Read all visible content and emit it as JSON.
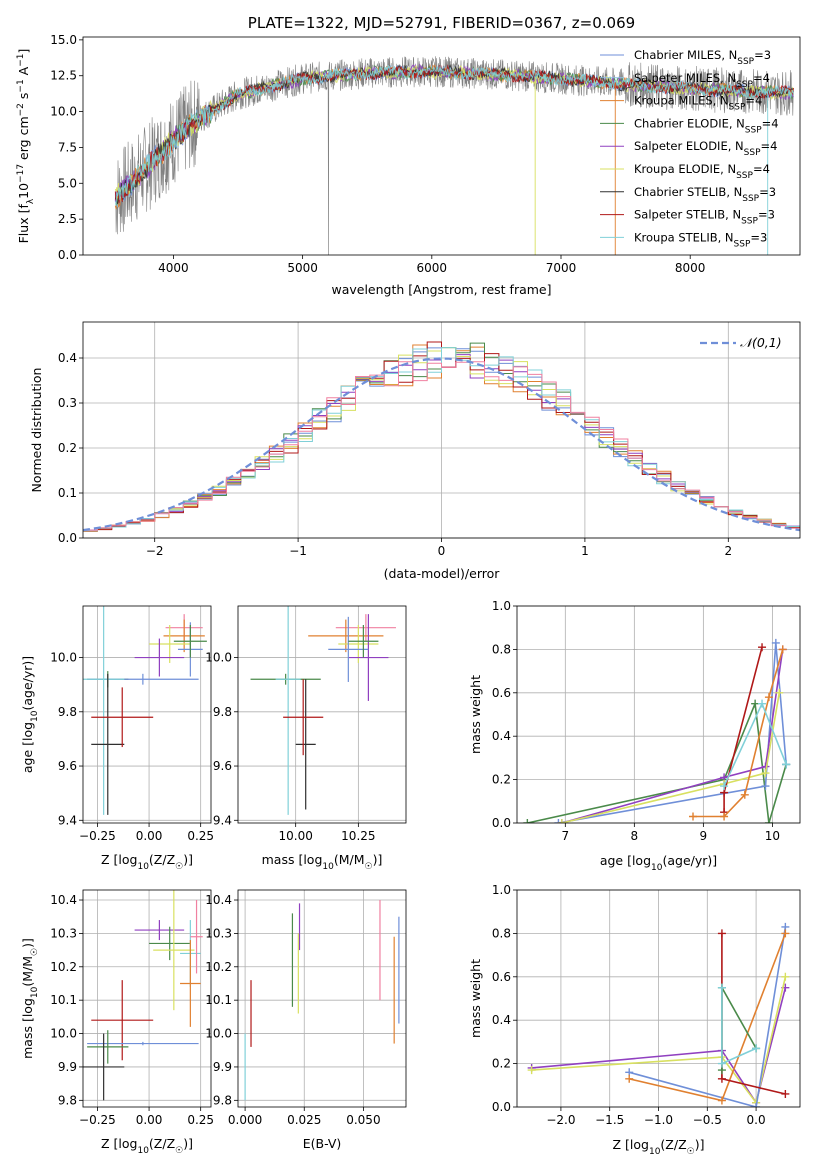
{
  "chart_data": [
    {
      "type": "line",
      "title": "PLATE=1322, MJD=52791, FIBERID=0367, z=0.069",
      "xlabel": "wavelength [Angstrom, rest frame]",
      "ylabel": "Flux [f_λ10^-17 erg cm^-2 s^-1 A^-1]",
      "xlim": [
        3300,
        8850
      ],
      "ylim": [
        0,
        15.2
      ],
      "xticks": [
        "4000",
        "5000",
        "6000",
        "7000",
        "8000"
      ],
      "yticks": [
        "0.0",
        "2.5",
        "5.0",
        "7.5",
        "10.0",
        "12.5",
        "15.0"
      ],
      "grid": false,
      "legend_position": "top-right",
      "data_series": {
        "name": "data",
        "color": "#808080"
      },
      "continuum": {
        "x": [
          3550,
          3700,
          3850,
          4000,
          4200,
          4500,
          5000,
          5500,
          6000,
          6500,
          7000,
          7500,
          8000,
          8500,
          8800
        ],
        "y": [
          4.0,
          5.2,
          6.6,
          8.0,
          9.5,
          11.2,
          12.3,
          12.7,
          12.8,
          12.6,
          12.3,
          11.9,
          11.6,
          11.4,
          11.3
        ]
      },
      "series": [
        {
          "name": "Chabrier MILES, N_SSP=3",
          "color": "#6f8fd8"
        },
        {
          "name": "Salpeter MILES, N_SSP=4",
          "color": "#8cc0e0"
        },
        {
          "name": "Kroupa MILES, N_SSP=4",
          "color": "#e08030"
        },
        {
          "name": "Chabrier ELODIE, N_SSP=4",
          "color": "#4a8a4a"
        },
        {
          "name": "Salpeter ELODIE, N_SSP=4",
          "color": "#9040c0"
        },
        {
          "name": "Kroupa ELODIE, N_SSP=4",
          "color": "#d8e060"
        },
        {
          "name": "Chabrier STELIB, N_SSP=3",
          "color": "#303030"
        },
        {
          "name": "Salpeter STELIB, N_SSP=3",
          "color": "#b01818"
        },
        {
          "name": "Kroupa STELIB, N_SSP=3",
          "color": "#80d0d8"
        }
      ]
    },
    {
      "type": "histogram",
      "xlabel": "(data-model)/error",
      "ylabel": "Normed distribution",
      "xlim": [
        -2.5,
        2.5
      ],
      "ylim": [
        0,
        0.48
      ],
      "xticks": [
        "−2",
        "−1",
        "0",
        "1",
        "2"
      ],
      "yticks": [
        "0.0",
        "0.1",
        "0.2",
        "0.3",
        "0.4"
      ],
      "grid": true,
      "legend": "𝒩(0,1)",
      "legend_position": "top-right",
      "bin_width": 0.1,
      "series_colors": [
        "#6f8fd8",
        "#e08030",
        "#4a8a4a",
        "#9040c0",
        "#d8e060",
        "#b01818",
        "#80d0d8",
        "#f080a0"
      ]
    },
    {
      "type": "scatter",
      "xlabel": "Z [log10(Z/Z☉)]",
      "ylabel": "age  [log10(age/yr)]",
      "xlim": [
        -0.32,
        0.3
      ],
      "ylim": [
        9.39,
        10.19
      ],
      "xticks": [
        "−0.25",
        "0.00",
        "0.25"
      ],
      "yticks": [
        "9.4",
        "9.6",
        "9.8",
        "10.0"
      ],
      "grid": true,
      "points": [
        {
          "x": -0.2,
          "y": 9.92,
          "ex": 0.1,
          "ey": 0.03,
          "color": "#4a8a4a"
        },
        {
          "x": -0.03,
          "y": 9.92,
          "ex": 0.27,
          "ey": 0.02,
          "color": "#6f8fd8"
        },
        {
          "x": -0.22,
          "y": 9.92,
          "ex": 0.1,
          "ey": 0.5,
          "color": "#80d0d8"
        },
        {
          "x": -0.2,
          "y": 9.68,
          "ex": 0.08,
          "ey": 0.26,
          "color": "#303030"
        },
        {
          "x": -0.13,
          "y": 9.78,
          "ex": 0.15,
          "ey": 0.11,
          "color": "#b01818"
        },
        {
          "x": 0.17,
          "y": 10.11,
          "ex": 0.09,
          "ey": 0.05,
          "color": "#f080a0"
        },
        {
          "x": 0.17,
          "y": 10.08,
          "ex": 0.1,
          "ey": 0.06,
          "color": "#e08030"
        },
        {
          "x": 0.1,
          "y": 10.05,
          "ex": 0.1,
          "ey": 0.07,
          "color": "#d8e060"
        },
        {
          "x": 0.05,
          "y": 10.0,
          "ex": 0.12,
          "ey": 0.07,
          "color": "#9040c0"
        },
        {
          "x": 0.2,
          "y": 10.03,
          "ex": 0.06,
          "ey": 0.1,
          "color": "#6f8fd8"
        },
        {
          "x": 0.2,
          "y": 10.06,
          "ex": 0.08,
          "ey": 0.06,
          "color": "#4a8a4a"
        }
      ]
    },
    {
      "type": "scatter",
      "xlabel": "mass [log10(M/M☉)]",
      "ylabel": "",
      "xlim": [
        9.77,
        10.44
      ],
      "ylim": [
        9.39,
        10.19
      ],
      "xticks": [
        "10.00",
        "10.25"
      ],
      "yticks": [
        "9.4",
        "9.6",
        "9.8",
        "10.0"
      ],
      "grid": true,
      "points": [
        {
          "x": 9.96,
          "y": 9.92,
          "ex": 0.14,
          "ey": 0.02,
          "color": "#4a8a4a"
        },
        {
          "x": 9.97,
          "y": 9.92,
          "ex": 0.05,
          "ey": 0.5,
          "color": "#80d0d8"
        },
        {
          "x": 10.04,
          "y": 9.68,
          "ex": 0.04,
          "ey": 0.24,
          "color": "#303030"
        },
        {
          "x": 10.03,
          "y": 9.78,
          "ex": 0.08,
          "ey": 0.14,
          "color": "#b01818"
        },
        {
          "x": 10.28,
          "y": 10.11,
          "ex": 0.12,
          "ey": 0.05,
          "color": "#f080a0"
        },
        {
          "x": 10.2,
          "y": 10.08,
          "ex": 0.15,
          "ey": 0.06,
          "color": "#e08030"
        },
        {
          "x": 10.25,
          "y": 10.05,
          "ex": 0.08,
          "ey": 0.07,
          "color": "#d8e060"
        },
        {
          "x": 10.29,
          "y": 10.0,
          "ex": 0.08,
          "ey": 0.16,
          "color": "#9040c0"
        },
        {
          "x": 10.21,
          "y": 10.03,
          "ex": 0.08,
          "ey": 0.12,
          "color": "#6f8fd8"
        },
        {
          "x": 10.27,
          "y": 10.06,
          "ex": 0.06,
          "ey": 0.06,
          "color": "#4a8a4a"
        }
      ]
    },
    {
      "type": "line",
      "xlabel": "age  [log10(age/yr)]",
      "ylabel": "mass weight",
      "xlim": [
        6.3,
        10.4
      ],
      "ylim": [
        0,
        1.0
      ],
      "xticks": [
        "7",
        "8",
        "9",
        "10"
      ],
      "yticks": [
        "0.0",
        "0.2",
        "0.4",
        "0.6",
        "0.8",
        "1.0"
      ],
      "grid": true,
      "series": [
        {
          "color": "#4a8a4a",
          "x": [
            6.45,
            9.3,
            9.75,
            9.95,
            10.2
          ],
          "y": [
            0.0,
            0.2,
            0.55,
            0.0,
            0.27
          ]
        },
        {
          "color": "#6f8fd8",
          "x": [
            6.9,
            9.9,
            10.05,
            10.2
          ],
          "y": [
            0.0,
            0.17,
            0.83,
            0.27
          ]
        },
        {
          "color": "#9040c0",
          "x": [
            6.95,
            9.3,
            9.9,
            10.15
          ],
          "y": [
            0.0,
            0.21,
            0.26,
            0.8
          ]
        },
        {
          "color": "#d8e060",
          "x": [
            6.95,
            9.3,
            9.9,
            10.1
          ],
          "y": [
            0.0,
            0.18,
            0.23,
            0.6
          ]
        },
        {
          "color": "#b01818",
          "x": [
            9.3,
            9.3,
            9.85
          ],
          "y": [
            0.05,
            0.14,
            0.81
          ]
        },
        {
          "color": "#e08030",
          "x": [
            8.85,
            9.3,
            9.6,
            9.95,
            10.15
          ],
          "y": [
            0.03,
            0.03,
            0.13,
            0.58,
            0.8
          ]
        },
        {
          "color": "#80d0d8",
          "x": [
            9.3,
            9.85,
            10.2
          ],
          "y": [
            0.17,
            0.55,
            0.27
          ]
        }
      ]
    },
    {
      "type": "scatter",
      "xlabel": "Z [log10(Z/Z☉)]",
      "ylabel": "mass [log10(M/M☉)]",
      "xlim": [
        -0.32,
        0.3
      ],
      "ylim": [
        9.78,
        10.43
      ],
      "xticks": [
        "−0.25",
        "0.00",
        "0.25"
      ],
      "yticks": [
        "9.8",
        "9.9",
        "10.0",
        "10.1",
        "10.2",
        "10.3",
        "10.4"
      ],
      "grid": true,
      "points": [
        {
          "x": -0.13,
          "y": 10.04,
          "ex": 0.15,
          "ey": 0.12,
          "color": "#b01818"
        },
        {
          "x": -0.03,
          "y": 9.97,
          "ex": 0.27,
          "ey": 0.005,
          "color": "#6f8fd8"
        },
        {
          "x": -0.2,
          "y": 9.96,
          "ex": 0.1,
          "ey": 0.05,
          "color": "#4a8a4a"
        },
        {
          "x": -0.22,
          "y": 9.9,
          "ex": 0.1,
          "ey": 0.1,
          "color": "#303030"
        },
        {
          "x": 0.05,
          "y": 10.31,
          "ex": 0.12,
          "ey": 0.03,
          "color": "#9040c0"
        },
        {
          "x": 0.1,
          "y": 10.27,
          "ex": 0.1,
          "ey": 0.05,
          "color": "#4a8a4a"
        },
        {
          "x": 0.12,
          "y": 10.25,
          "ex": 0.1,
          "ey": 0.18,
          "color": "#d8e060"
        },
        {
          "x": 0.2,
          "y": 10.24,
          "ex": 0.05,
          "ey": 0.1,
          "color": "#80d0d8"
        },
        {
          "x": 0.2,
          "y": 10.15,
          "ex": 0.05,
          "ey": 0.13,
          "color": "#e08030"
        },
        {
          "x": 0.23,
          "y": 10.29,
          "ex": 0.03,
          "ey": 0.11,
          "color": "#f080a0"
        }
      ]
    },
    {
      "type": "scatter",
      "xlabel": "E(B-V)",
      "ylabel": "",
      "xlim": [
        -0.003,
        0.068
      ],
      "ylim": [
        9.78,
        10.43
      ],
      "xticks": [
        "0.000",
        "0.025",
        "0.050"
      ],
      "yticks": [
        "9.8",
        "9.9",
        "10.0",
        "10.1",
        "10.2",
        "10.3",
        "10.4"
      ],
      "grid": true,
      "points": [
        {
          "x": 0.0,
          "y": 9.9,
          "ey": 0.1,
          "color": "#80d0d8"
        },
        {
          "x": 0.0025,
          "y": 10.06,
          "ey": 0.1,
          "color": "#b01818"
        },
        {
          "x": 0.02,
          "y": 10.22,
          "ey": 0.14,
          "color": "#4a8a4a"
        },
        {
          "x": 0.023,
          "y": 10.32,
          "ey": 0.07,
          "color": "#9040c0"
        },
        {
          "x": 0.0225,
          "y": 10.18,
          "ey": 0.12,
          "color": "#d8e060"
        },
        {
          "x": 0.057,
          "y": 10.25,
          "ey": 0.15,
          "color": "#f080a0"
        },
        {
          "x": 0.063,
          "y": 10.13,
          "ey": 0.16,
          "color": "#e08030"
        },
        {
          "x": 0.065,
          "y": 10.19,
          "ey": 0.16,
          "color": "#6f8fd8"
        }
      ]
    },
    {
      "type": "line",
      "xlabel": "Z [log10(Z/Z☉)]",
      "ylabel": "mass weight",
      "xlim": [
        -2.45,
        0.45
      ],
      "ylim": [
        0,
        1.0
      ],
      "xticks": [
        "−2.0",
        "−1.5",
        "−1.0",
        "−0.5",
        "0.0"
      ],
      "yticks": [
        "0.0",
        "0.2",
        "0.4",
        "0.6",
        "0.8",
        "1.0"
      ],
      "grid": true,
      "series": [
        {
          "color": "#9040c0",
          "x": [
            -2.3,
            -0.35,
            0.0,
            0.3
          ],
          "y": [
            0.18,
            0.26,
            0.02,
            0.55
          ]
        },
        {
          "color": "#d8e060",
          "x": [
            -2.3,
            -0.35,
            0.0,
            0.3
          ],
          "y": [
            0.17,
            0.23,
            0.02,
            0.6
          ]
        },
        {
          "color": "#6f8fd8",
          "x": [
            -1.3,
            0.0,
            0.3
          ],
          "y": [
            0.16,
            0.0,
            0.83
          ]
        },
        {
          "color": "#e08030",
          "x": [
            -1.3,
            -0.35,
            0.3
          ],
          "y": [
            0.13,
            0.03,
            0.8
          ]
        },
        {
          "color": "#b01818",
          "x": [
            -0.35,
            -0.35,
            0.3
          ],
          "y": [
            0.8,
            0.13,
            0.06
          ]
        },
        {
          "color": "#4a8a4a",
          "x": [
            -0.35,
            -0.35,
            0.0
          ],
          "y": [
            0.17,
            0.55,
            0.27
          ]
        },
        {
          "color": "#80d0d8",
          "x": [
            -0.35,
            -0.35,
            0.0
          ],
          "y": [
            0.55,
            0.2,
            0.27
          ]
        }
      ]
    }
  ]
}
